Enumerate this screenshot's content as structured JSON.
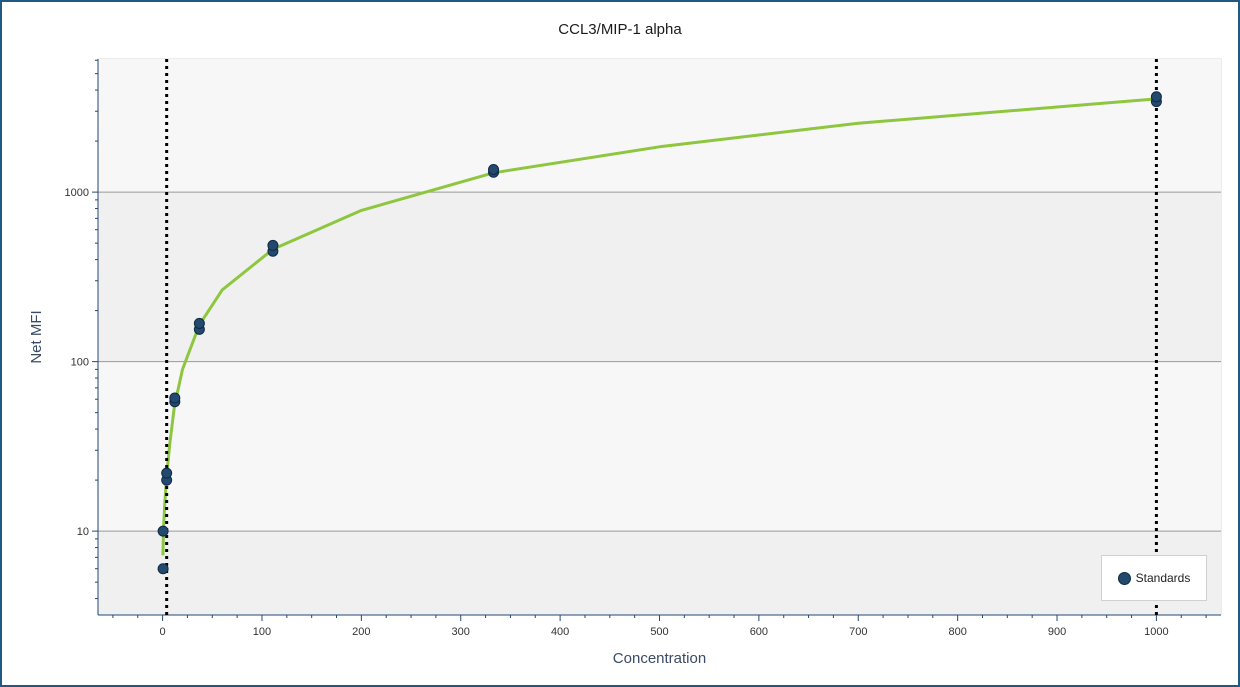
{
  "chart_data": {
    "type": "scatter",
    "title": "CCL3/MIP-1 alpha",
    "xlabel": "Concentration",
    "ylabel": "Net MFI",
    "xlim": [
      -65,
      1065
    ],
    "ylim": [
      3.2,
      6100
    ],
    "yscale": "log",
    "xticks": [
      0,
      100,
      200,
      300,
      400,
      500,
      600,
      700,
      800,
      900,
      1000
    ],
    "yticks": [
      10,
      100,
      1000
    ],
    "grid": "horizontal at decades",
    "legend_position": "bottom-right",
    "series": [
      {
        "name": "Standards",
        "color": "#23496e",
        "points": [
          {
            "x": 0.5,
            "y": 6
          },
          {
            "x": 0.5,
            "y": 10
          },
          {
            "x": 4.1,
            "y": 20
          },
          {
            "x": 4.1,
            "y": 22
          },
          {
            "x": 12.3,
            "y": 58
          },
          {
            "x": 12.3,
            "y": 61
          },
          {
            "x": 37,
            "y": 155
          },
          {
            "x": 37,
            "y": 168
          },
          {
            "x": 111,
            "y": 448
          },
          {
            "x": 111,
            "y": 485
          },
          {
            "x": 333,
            "y": 1310
          },
          {
            "x": 333,
            "y": 1360
          },
          {
            "x": 1000,
            "y": 3420
          },
          {
            "x": 1000,
            "y": 3650
          }
        ]
      }
    ],
    "curve": {
      "color": "#8ec63f",
      "points": [
        {
          "x": 0.3,
          "y": 7.2
        },
        {
          "x": 1,
          "y": 10.5
        },
        {
          "x": 2,
          "y": 14
        },
        {
          "x": 4,
          "y": 21
        },
        {
          "x": 7,
          "y": 32
        },
        {
          "x": 12,
          "y": 55
        },
        {
          "x": 20,
          "y": 90
        },
        {
          "x": 37,
          "y": 165
        },
        {
          "x": 60,
          "y": 265
        },
        {
          "x": 111,
          "y": 460
        },
        {
          "x": 200,
          "y": 780
        },
        {
          "x": 333,
          "y": 1300
        },
        {
          "x": 500,
          "y": 1850
        },
        {
          "x": 700,
          "y": 2550
        },
        {
          "x": 1000,
          "y": 3550
        }
      ]
    },
    "reference_lines": {
      "style": "dotted",
      "color": "#000000",
      "x_values": [
        4.1,
        1000
      ]
    }
  }
}
